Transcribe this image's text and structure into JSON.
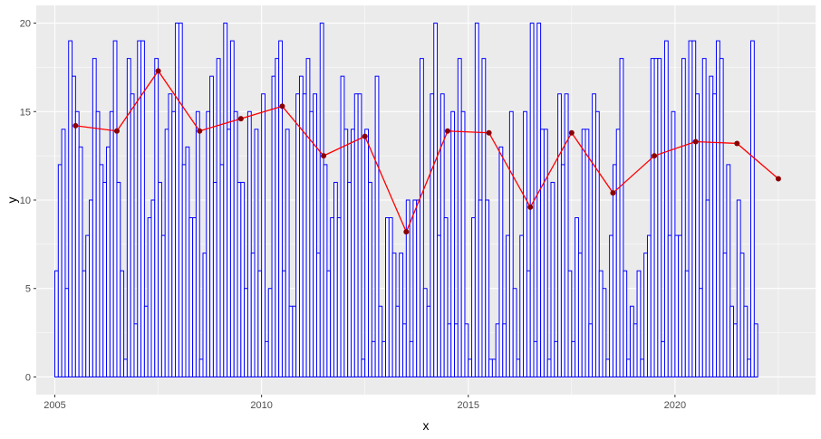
{
  "chart_data": {
    "type": "bar",
    "title": "",
    "xlabel": "x",
    "ylabel": "y",
    "xlim": [
      2004.55,
      2023.4
    ],
    "ylim": [
      -1,
      21
    ],
    "x_ticks": [
      2005,
      2010,
      2015,
      2020
    ],
    "y_ticks": [
      0,
      5,
      10,
      15,
      20
    ],
    "x_tick_labels": [
      "2005",
      "2010",
      "2015",
      "2020"
    ],
    "y_tick_labels": [
      "0",
      "5",
      "10",
      "15",
      "20"
    ],
    "grid": true,
    "legend": "none",
    "bar_start": 2005.0,
    "bar_step_months": 1,
    "bar_values": [
      6,
      12,
      14,
      5,
      19,
      17,
      15,
      13,
      6,
      8,
      10,
      18,
      15,
      12,
      11,
      13,
      15,
      19,
      11,
      6,
      1,
      18,
      16,
      3,
      19,
      19,
      4,
      9,
      10,
      18,
      11,
      8,
      14,
      16,
      15,
      20,
      20,
      12,
      13,
      9,
      9,
      15,
      1,
      7,
      15,
      17,
      11,
      18,
      12,
      20,
      14,
      19,
      15,
      11,
      11,
      5,
      15,
      7,
      14,
      6,
      16,
      2,
      5,
      17,
      18,
      19,
      6,
      14,
      4,
      4,
      16,
      17,
      16,
      18,
      15,
      16,
      7,
      20,
      12,
      6,
      9,
      11,
      9,
      17,
      14,
      11,
      14,
      16,
      16,
      1,
      14,
      11,
      2,
      17,
      4,
      2,
      9,
      9,
      7,
      4,
      7,
      3,
      10,
      2,
      10,
      10,
      18,
      5,
      4,
      16,
      20,
      8,
      16,
      9,
      3,
      15,
      3,
      18,
      15,
      3,
      1,
      9,
      20,
      10,
      18,
      10,
      1,
      1,
      3,
      13,
      3,
      8,
      15,
      5,
      1,
      8,
      15,
      6,
      20,
      2,
      20,
      14,
      14,
      1,
      11,
      2,
      16,
      12,
      16,
      6,
      2,
      9,
      7,
      14,
      14,
      3,
      16,
      15,
      6,
      5,
      1,
      8,
      12,
      14,
      18,
      6,
      1,
      4,
      3,
      6,
      1,
      7,
      8,
      18,
      18,
      18,
      2,
      19,
      8,
      15,
      8,
      8,
      18,
      6,
      19,
      19,
      16,
      5,
      18,
      10,
      17,
      16,
      19,
      18,
      7,
      12,
      4,
      3,
      10,
      7,
      4,
      1,
      19,
      3
    ],
    "series": [
      {
        "type": "line",
        "x": [
          2005.5,
          2006.5,
          2007.5,
          2008.5,
          2009.5,
          2010.5,
          2011.5,
          2012.5,
          2013.5,
          2014.5,
          2015.5,
          2016.5,
          2017.5,
          2018.5,
          2019.5,
          2020.5,
          2021.5,
          2022.5
        ],
        "values": [
          14.2,
          13.9,
          17.3,
          13.9,
          14.6,
          15.3,
          12.5,
          13.6,
          8.2,
          13.9,
          13.8,
          9.6,
          13.8,
          10.4,
          12.5,
          13.3,
          13.2,
          11.2
        ]
      }
    ],
    "colors": {
      "panel_bg": "#ebebeb",
      "grid_major": "#ffffff",
      "bar_fill": "#ffffff",
      "bar_outline": "#0000ff",
      "line": "#ff0000",
      "point": "#8b0000"
    }
  }
}
